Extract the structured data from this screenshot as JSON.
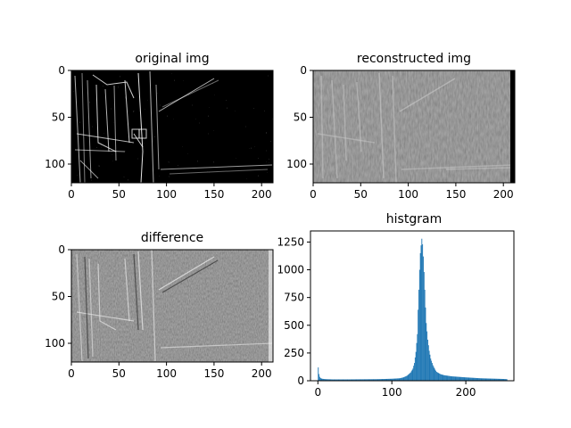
{
  "chart_data": [
    {
      "type": "heatmap",
      "title": "original img",
      "xlabel": "",
      "ylabel": "",
      "xlim": [
        0,
        212
      ],
      "ylim": [
        120,
        0
      ],
      "xticks": [
        "0",
        "50",
        "100",
        "150",
        "200"
      ],
      "yticks": [
        "0",
        "50",
        "100"
      ],
      "colormap": "gray",
      "background": "#000000"
    },
    {
      "type": "heatmap",
      "title": "reconstructed img",
      "xlabel": "",
      "ylabel": "",
      "xlim": [
        0,
        212
      ],
      "ylim": [
        120,
        0
      ],
      "xticks": [
        "0",
        "50",
        "100",
        "150",
        "200"
      ],
      "yticks": [
        "0",
        "50",
        "100"
      ],
      "colormap": "gray",
      "background": "#5f5f5f"
    },
    {
      "type": "heatmap",
      "title": "difference",
      "xlabel": "",
      "ylabel": "",
      "xlim": [
        0,
        212
      ],
      "ylim": [
        120,
        0
      ],
      "xticks": [
        "0",
        "50",
        "100",
        "150",
        "200"
      ],
      "yticks": [
        "0",
        "50",
        "100"
      ],
      "colormap": "gray",
      "background": "#6e6e6e"
    },
    {
      "type": "bar",
      "title": "histgram",
      "xlabel": "",
      "ylabel": "",
      "xlim": [
        -10,
        265
      ],
      "ylim": [
        0,
        1350
      ],
      "xticks": [
        "0",
        "100",
        "200"
      ],
      "yticks": [
        "0",
        "250",
        "500",
        "750",
        "1000",
        "1250"
      ],
      "color": "#1f77b4",
      "x": [
        0,
        1,
        2,
        3,
        5,
        10,
        20,
        40,
        60,
        80,
        100,
        110,
        115,
        120,
        125,
        128,
        130,
        132,
        134,
        135,
        136,
        137,
        138,
        139,
        140,
        141,
        142,
        143,
        144,
        145,
        146,
        148,
        150,
        152,
        155,
        158,
        160,
        165,
        170,
        180,
        190,
        200,
        210,
        220,
        230,
        240,
        250,
        255
      ],
      "values": [
        120,
        60,
        35,
        25,
        18,
        14,
        12,
        12,
        13,
        14,
        18,
        22,
        30,
        45,
        75,
        110,
        160,
        260,
        420,
        640,
        820,
        1000,
        1150,
        1220,
        1280,
        1230,
        1120,
        980,
        820,
        660,
        520,
        370,
        270,
        200,
        140,
        100,
        80,
        60,
        50,
        40,
        35,
        30,
        26,
        22,
        20,
        18,
        16,
        14
      ]
    }
  ]
}
